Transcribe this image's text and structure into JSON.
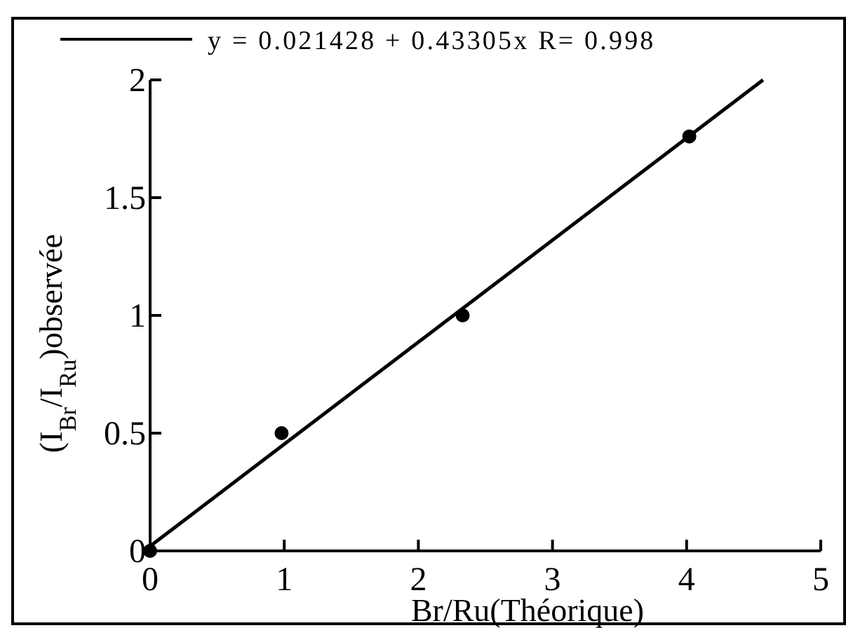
{
  "chart_data": {
    "type": "scatter",
    "xlabel": "Br/Ru(Théorique)",
    "ylabel": "(I$_{Br}$/I$_{Ru}$)observée",
    "x": [
      0,
      0.98,
      2.33,
      4.02
    ],
    "xlim": [
      0,
      5
    ],
    "ylim": [
      0,
      2
    ],
    "xticks": [
      0,
      1,
      2,
      3,
      4,
      5
    ],
    "yticks": [
      0,
      0.5,
      1,
      1.5,
      2
    ],
    "marker": "circle",
    "legend": "top",
    "grid": false,
    "series": [
      {
        "color": "#000000",
        "values": [
          0,
          0.5,
          1,
          1.76
        ]
      },
      {
        "type": "line",
        "name": "y = 0.021428 + 0.43305x R= 0.998",
        "color": "#000000",
        "x": [
          0,
          4.57
        ],
        "values": [
          0.02,
          2
        ],
        "marker": "none",
        "line_style": "solid"
      }
    ]
  }
}
